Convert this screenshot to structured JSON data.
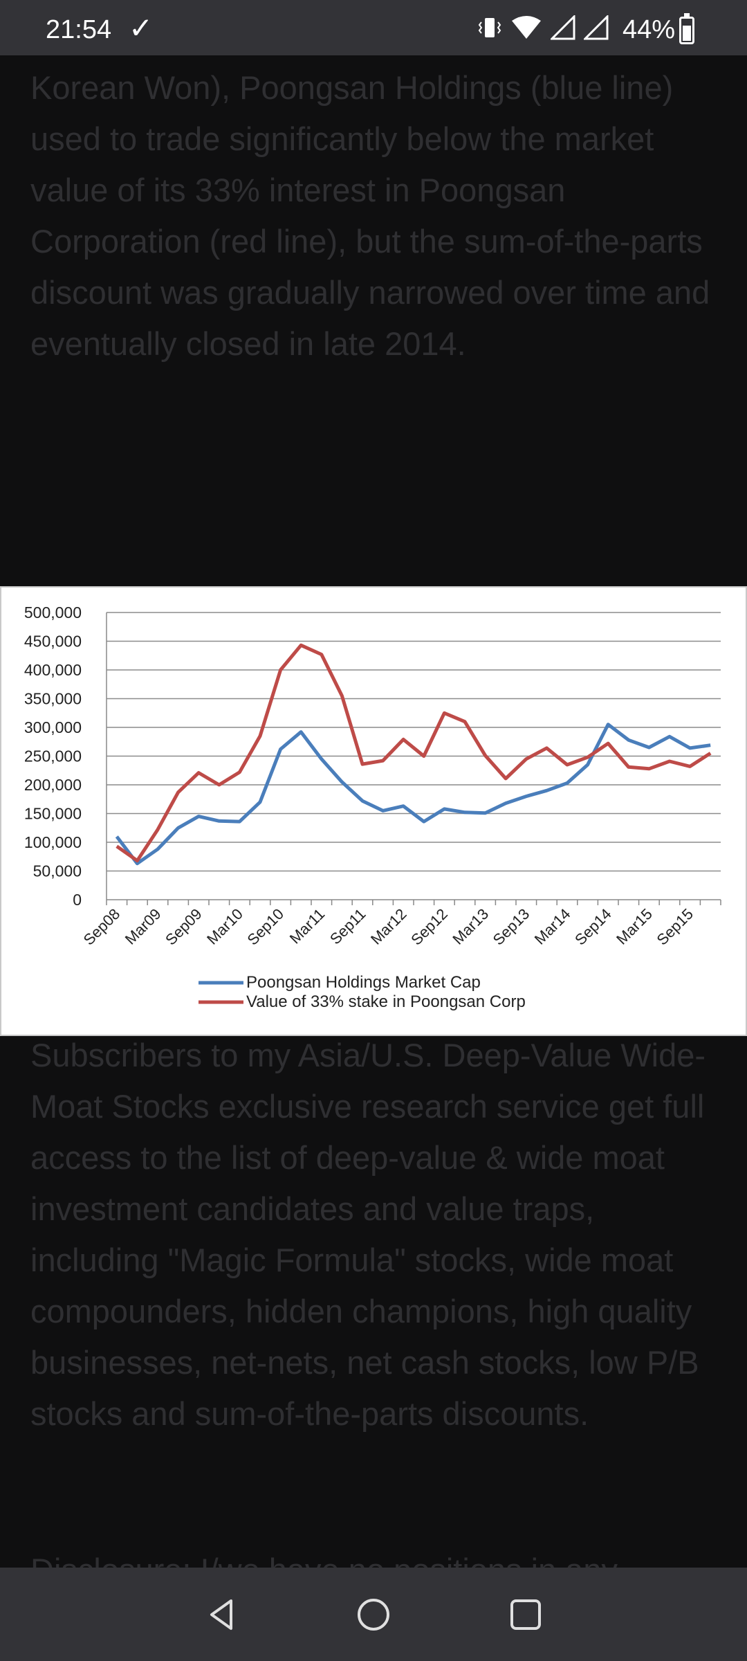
{
  "status_bar": {
    "time": "21:54",
    "battery": "44%",
    "icons": [
      "download-done-icon",
      "vibrate-icon",
      "wifi-icon",
      "signal-icon",
      "signal-icon",
      "battery-icon"
    ]
  },
  "article": {
    "paragraph_top": "Korean Won), Poongsan Holdings (blue line) used to trade significantly below the market value of its 33% interest in Poongsan Corporation (red line), but the sum-of-the-parts discount was gradually narrowed over time and eventually closed in late 2014.",
    "paragraph_bottom": "Subscribers to my Asia/U.S. Deep-Value Wide-Moat Stocks exclusive research service get full access to the list of deep-value & wide moat investment candidates and value traps, including \"Magic Formula\" stocks, wide moat compounders, hidden champions, high quality businesses, net-nets, net cash stocks, low P/B stocks and sum-of-the-parts discounts.",
    "paragraph_cut": "Disclosure: I/we have no positions in any"
  },
  "colors": {
    "blue_series": "#4a7ebb",
    "red_series": "#be4b48",
    "grid": "#8c8c8c"
  },
  "chart_data": {
    "type": "line",
    "ylim": [
      0,
      500000
    ],
    "yticks": [
      "0",
      "50,000",
      "100,000",
      "150,000",
      "200,000",
      "250,000",
      "300,000",
      "350,000",
      "400,000",
      "450,000",
      "500,000"
    ],
    "xticks": [
      "Sep08",
      "Mar09",
      "Sep09",
      "Mar10",
      "Sep10",
      "Mar11",
      "Sep11",
      "Mar12",
      "Sep12",
      "Mar13",
      "Sep13",
      "Mar14",
      "Sep14",
      "Mar15",
      "Sep15"
    ],
    "x": [
      "Sep08",
      "Dec08",
      "Mar09",
      "Jun09",
      "Sep09",
      "Dec09",
      "Mar10",
      "Jun10",
      "Sep10",
      "Dec10",
      "Mar11",
      "Jun11",
      "Sep11",
      "Dec11",
      "Mar12",
      "Jun12",
      "Sep12",
      "Dec12",
      "Mar13",
      "Jun13",
      "Sep13",
      "Dec13",
      "Mar14",
      "Jun14",
      "Sep14",
      "Dec14",
      "Mar15",
      "Jun15",
      "Sep15",
      "Dec15"
    ],
    "legend_position": "bottom",
    "grid": true,
    "series": [
      {
        "name": "Poongsan Holdings Market Cap",
        "color": "#4a7ebb",
        "values": [
          110000,
          63000,
          88000,
          125000,
          145000,
          137000,
          136000,
          170000,
          262000,
          292000,
          245000,
          205000,
          172000,
          155000,
          163000,
          136000,
          158000,
          152000,
          151000,
          168000,
          180000,
          190000,
          203000,
          235000,
          305000,
          278000,
          265000,
          284000,
          264000,
          269000
        ]
      },
      {
        "name": "Value of 33% stake in Poongsan Corp",
        "color": "#be4b48",
        "values": [
          93000,
          68000,
          122000,
          187000,
          221000,
          200000,
          222000,
          285000,
          400000,
          443000,
          427000,
          355000,
          236000,
          242000,
          279000,
          250000,
          325000,
          310000,
          251000,
          211000,
          245000,
          264000,
          235000,
          248000,
          272000,
          231000,
          228000,
          241000,
          232000,
          255000
        ]
      }
    ]
  }
}
